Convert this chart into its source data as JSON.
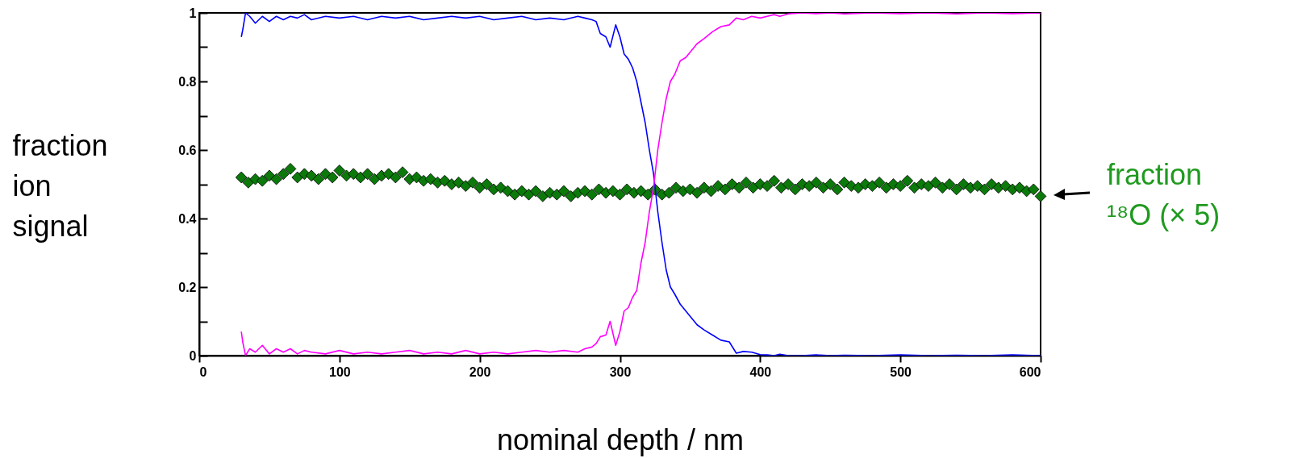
{
  "chart_data": {
    "type": "line",
    "xlabel": "nominal depth / nm",
    "ylabel": "fraction ion signal",
    "xlim": [
      0,
      600
    ],
    "xticks": [
      0,
      100,
      200,
      300,
      400,
      500,
      600
    ],
    "ylim": [
      0,
      1
    ],
    "yticks": [
      0,
      {
        "value": 0.1,
        "label": null
      },
      0.2,
      {
        "value": 0.3,
        "label": null
      },
      0.4,
      {
        "value": 0.5,
        "label": null
      },
      0.6,
      {
        "value": 0.7,
        "label": null
      },
      0.8,
      {
        "value": 0.9,
        "label": null
      },
      1
    ],
    "annotations": [
      "fraction ¹⁸O (× 5)"
    ],
    "series": [
      {
        "color": "#0000ff",
        "x": [
          30,
          31,
          33,
          36,
          40,
          45,
          50,
          55,
          60,
          65,
          70,
          75,
          80,
          90,
          100,
          110,
          120,
          130,
          140,
          150,
          160,
          170,
          180,
          190,
          200,
          210,
          220,
          230,
          240,
          250,
          260,
          270,
          275,
          280,
          283,
          286,
          290,
          293,
          297,
          300,
          303,
          306,
          309,
          312,
          315,
          318,
          321,
          324,
          327,
          330,
          333,
          336,
          339,
          343,
          347,
          351,
          355,
          360,
          366,
          372,
          378,
          383,
          388,
          394,
          400,
          405,
          410,
          414,
          420,
          430,
          440,
          450,
          460,
          480,
          500,
          520,
          540,
          560,
          580,
          600
        ],
        "values": [
          0.93,
          0.95,
          1.0,
          0.99,
          0.97,
          0.99,
          0.975,
          0.99,
          0.98,
          0.99,
          0.985,
          0.995,
          0.98,
          0.99,
          0.985,
          0.99,
          0.98,
          0.99,
          0.985,
          0.99,
          0.98,
          0.985,
          0.99,
          0.985,
          0.99,
          0.98,
          0.985,
          0.99,
          0.98,
          0.985,
          0.98,
          0.99,
          0.985,
          0.98,
          0.975,
          0.94,
          0.93,
          0.9,
          0.965,
          0.93,
          0.88,
          0.865,
          0.84,
          0.8,
          0.74,
          0.68,
          0.6,
          0.53,
          0.42,
          0.33,
          0.25,
          0.2,
          0.18,
          0.15,
          0.13,
          0.11,
          0.09,
          0.075,
          0.06,
          0.045,
          0.04,
          0.007,
          0.012,
          0.01,
          0.003,
          0.002,
          0.0,
          0.004,
          0.0,
          0.0,
          0.002,
          0.0,
          0.001,
          0.0,
          0.002,
          0.0,
          0.001,
          0.0,
          0.002,
          0.0
        ]
      },
      {
        "color": "#ff00ff",
        "x": [
          30,
          31,
          33,
          36,
          40,
          45,
          50,
          55,
          60,
          65,
          70,
          75,
          80,
          90,
          100,
          110,
          120,
          130,
          140,
          150,
          160,
          170,
          180,
          190,
          200,
          210,
          220,
          230,
          240,
          250,
          260,
          270,
          275,
          280,
          283,
          286,
          290,
          293,
          297,
          300,
          303,
          306,
          309,
          312,
          315,
          318,
          321,
          324,
          327,
          330,
          333,
          336,
          339,
          343,
          347,
          351,
          355,
          360,
          366,
          372,
          378,
          383,
          388,
          394,
          400,
          405,
          410,
          414,
          420,
          430,
          440,
          450,
          460,
          480,
          500,
          520,
          540,
          560,
          580,
          600
        ],
        "values": [
          0.07,
          0.04,
          0.0,
          0.02,
          0.01,
          0.03,
          0.005,
          0.02,
          0.01,
          0.02,
          0.005,
          0.015,
          0.01,
          0.005,
          0.015,
          0.005,
          0.01,
          0.005,
          0.01,
          0.015,
          0.005,
          0.01,
          0.005,
          0.015,
          0.005,
          0.01,
          0.005,
          0.01,
          0.015,
          0.01,
          0.015,
          0.01,
          0.02,
          0.025,
          0.035,
          0.055,
          0.06,
          0.1,
          0.03,
          0.07,
          0.13,
          0.14,
          0.17,
          0.19,
          0.27,
          0.33,
          0.42,
          0.49,
          0.6,
          0.68,
          0.75,
          0.8,
          0.82,
          0.86,
          0.87,
          0.89,
          0.91,
          0.925,
          0.945,
          0.96,
          0.965,
          0.985,
          0.98,
          0.99,
          0.985,
          0.99,
          0.995,
          0.99,
          0.997,
          1.0,
          0.998,
          1.0,
          0.997,
          1.0,
          0.998,
          1.0,
          0.997,
          1.0,
          0.998,
          1.0
        ]
      },
      {
        "type": "scatter",
        "color": "#0b7a0b",
        "marker": "diamond",
        "x": [
          30,
          35,
          40,
          45,
          50,
          55,
          60,
          65,
          70,
          75,
          80,
          85,
          90,
          95,
          100,
          105,
          110,
          115,
          120,
          125,
          130,
          135,
          140,
          145,
          150,
          155,
          160,
          165,
          170,
          175,
          180,
          185,
          190,
          195,
          200,
          205,
          210,
          215,
          220,
          225,
          230,
          235,
          240,
          245,
          250,
          255,
          260,
          265,
          270,
          275,
          280,
          285,
          290,
          295,
          300,
          305,
          310,
          315,
          320,
          325,
          330,
          335,
          340,
          345,
          350,
          355,
          360,
          365,
          370,
          375,
          380,
          385,
          390,
          395,
          400,
          405,
          410,
          415,
          420,
          425,
          430,
          435,
          440,
          445,
          450,
          455,
          460,
          465,
          470,
          475,
          480,
          485,
          490,
          495,
          500,
          505,
          510,
          515,
          520,
          525,
          530,
          535,
          540,
          545,
          550,
          555,
          560,
          565,
          570,
          575,
          580,
          585,
          590,
          595,
          600
        ],
        "values": [
          0.52,
          0.505,
          0.515,
          0.51,
          0.525,
          0.515,
          0.53,
          0.545,
          0.52,
          0.53,
          0.525,
          0.515,
          0.53,
          0.52,
          0.54,
          0.525,
          0.53,
          0.52,
          0.53,
          0.515,
          0.525,
          0.53,
          0.52,
          0.535,
          0.515,
          0.52,
          0.51,
          0.515,
          0.505,
          0.51,
          0.5,
          0.505,
          0.495,
          0.505,
          0.49,
          0.5,
          0.485,
          0.49,
          0.48,
          0.47,
          0.48,
          0.47,
          0.48,
          0.465,
          0.475,
          0.47,
          0.48,
          0.465,
          0.475,
          0.48,
          0.47,
          0.485,
          0.475,
          0.48,
          0.47,
          0.485,
          0.475,
          0.48,
          0.47,
          0.485,
          0.47,
          0.475,
          0.49,
          0.48,
          0.485,
          0.475,
          0.49,
          0.48,
          0.495,
          0.485,
          0.5,
          0.49,
          0.505,
          0.49,
          0.5,
          0.495,
          0.51,
          0.49,
          0.5,
          0.485,
          0.5,
          0.495,
          0.505,
          0.49,
          0.5,
          0.485,
          0.505,
          0.495,
          0.49,
          0.5,
          0.495,
          0.505,
          0.49,
          0.5,
          0.495,
          0.51,
          0.49,
          0.5,
          0.495,
          0.505,
          0.49,
          0.5,
          0.485,
          0.5,
          0.49,
          0.495,
          0.485,
          0.5,
          0.49,
          0.495,
          0.485,
          0.49,
          0.48,
          0.485,
          0.465
        ]
      }
    ]
  }
}
